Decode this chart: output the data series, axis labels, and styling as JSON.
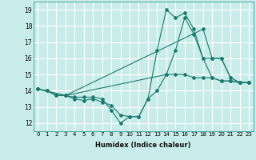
{
  "xlabel": "Humidex (Indice chaleur)",
  "background_color": "#c8ece9",
  "grid_color": "#ffffff",
  "line_color": "#1a7a6e",
  "xlim": [
    -0.5,
    23.5
  ],
  "ylim": [
    11.5,
    19.5
  ],
  "yticks": [
    12,
    13,
    14,
    15,
    16,
    17,
    18,
    19
  ],
  "xticks": [
    0,
    1,
    2,
    3,
    4,
    5,
    6,
    7,
    8,
    9,
    10,
    11,
    12,
    13,
    14,
    15,
    16,
    17,
    18,
    19,
    20,
    21,
    22,
    23
  ],
  "lines": [
    {
      "x": [
        0,
        1,
        2,
        3,
        4,
        5,
        6,
        7,
        8,
        9,
        10,
        11,
        12,
        13,
        14,
        15,
        16,
        17,
        18,
        19,
        20,
        21,
        22,
        23
      ],
      "y": [
        14.1,
        14.0,
        13.7,
        13.7,
        13.6,
        13.6,
        13.6,
        13.5,
        12.8,
        12.0,
        12.4,
        12.4,
        13.5,
        16.5,
        19.0,
        18.5,
        18.8,
        17.8,
        16.0,
        14.8,
        14.6,
        14.6,
        14.5,
        14.5
      ]
    },
    {
      "x": [
        0,
        3,
        14,
        15,
        16,
        17,
        18,
        19,
        20,
        21,
        22,
        23
      ],
      "y": [
        14.1,
        13.7,
        15.0,
        16.5,
        18.5,
        17.5,
        16.0,
        16.0,
        16.0,
        14.8,
        14.5,
        14.5
      ]
    },
    {
      "x": [
        0,
        3,
        18,
        19,
        20,
        21,
        22,
        23
      ],
      "y": [
        14.1,
        13.7,
        17.8,
        16.0,
        16.0,
        14.8,
        14.5,
        14.5
      ]
    },
    {
      "x": [
        0,
        1,
        2,
        3,
        4,
        5,
        6,
        7,
        8,
        9,
        10,
        11,
        12,
        13,
        14,
        15,
        16,
        17,
        18,
        19,
        20,
        21,
        22,
        23
      ],
      "y": [
        14.1,
        14.0,
        13.7,
        13.7,
        13.5,
        13.4,
        13.5,
        13.3,
        13.1,
        12.5,
        12.4,
        12.4,
        13.5,
        14.0,
        15.0,
        15.0,
        15.0,
        14.8,
        14.8,
        14.8,
        14.6,
        14.6,
        14.5,
        14.5
      ]
    }
  ]
}
